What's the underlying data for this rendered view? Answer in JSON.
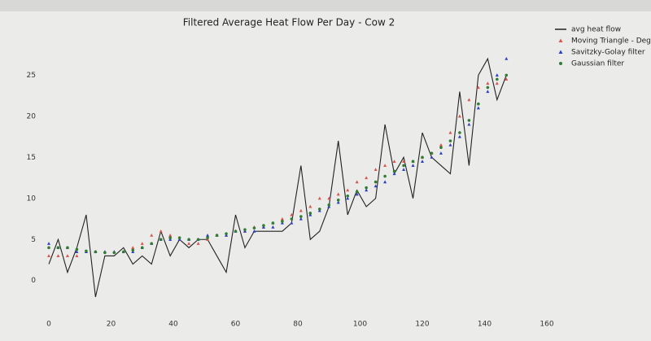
{
  "chart_data": {
    "type": "line",
    "title": "Filtered Average Heat Flow Per Day - Cow 2",
    "x": [
      0,
      3,
      6,
      9,
      12,
      15,
      18,
      21,
      24,
      27,
      30,
      33,
      36,
      39,
      42,
      45,
      48,
      51,
      54,
      57,
      60,
      63,
      66,
      69,
      72,
      75,
      78,
      81,
      84,
      87,
      90,
      93,
      96,
      99,
      102,
      105,
      108,
      111,
      114,
      117,
      120,
      123,
      126,
      129,
      132,
      135,
      138,
      141,
      144,
      147
    ],
    "series": [
      {
        "name": "avg heat flow",
        "color": "#222222",
        "style": "line",
        "values": [
          2,
          5,
          1,
          4,
          8,
          -2,
          3,
          3,
          4,
          2,
          3,
          2,
          6,
          3,
          5,
          4,
          5,
          5,
          3,
          1,
          8,
          4,
          6,
          6,
          6,
          6,
          7,
          14,
          5,
          6,
          9,
          17,
          8,
          11,
          9,
          10,
          19,
          13,
          15,
          10,
          18,
          15,
          14,
          13,
          23,
          14,
          25,
          27,
          22,
          25
        ]
      },
      {
        "name": "Moving Triangle - Degr",
        "color": "#d9534f",
        "style": "triangle",
        "values": [
          3,
          3,
          3,
          3,
          3.5,
          3.5,
          3.5,
          3.5,
          3.5,
          4,
          4.5,
          5.5,
          6,
          5.5,
          5,
          4.5,
          4.5,
          5,
          5.5,
          5.5,
          6,
          6,
          6.5,
          6.5,
          7,
          7.5,
          8,
          8.5,
          9,
          10,
          10,
          10.5,
          11,
          12,
          12.5,
          13.5,
          14,
          14.5,
          14.5,
          14.5,
          15,
          15.5,
          16.5,
          18,
          20,
          22,
          23.5,
          24,
          24,
          24.5
        ]
      },
      {
        "name": "Savitzky-Golay filter",
        "color": "#2b3fc4",
        "style": "triangle",
        "values": [
          4.5,
          4,
          4,
          3.5,
          3.5,
          3.5,
          3.5,
          3.5,
          3.5,
          3.5,
          4,
          4.5,
          5,
          5,
          5,
          5,
          5,
          5.5,
          5.5,
          5.5,
          6,
          6,
          6,
          6.5,
          6.5,
          7,
          7,
          7.5,
          8,
          8.5,
          9,
          9.5,
          10,
          10.5,
          11,
          11.5,
          12,
          13,
          13.5,
          14,
          14.5,
          15,
          15.5,
          16.5,
          17.5,
          19,
          21,
          23,
          25,
          27
        ]
      },
      {
        "name": "Gaussian filter",
        "color": "#2e7d32",
        "style": "dot",
        "values": [
          4,
          4,
          4,
          3.8,
          3.6,
          3.5,
          3.4,
          3.4,
          3.5,
          3.7,
          4,
          4.5,
          5,
          5.2,
          5.2,
          5,
          5,
          5.2,
          5.5,
          5.7,
          6,
          6.2,
          6.4,
          6.7,
          7,
          7.2,
          7.5,
          7.8,
          8.2,
          8.7,
          9.2,
          9.8,
          10.3,
          10.8,
          11.3,
          12,
          12.7,
          13.3,
          14,
          14.5,
          15,
          15.5,
          16.2,
          17,
          18,
          19.5,
          21.5,
          23.5,
          24.5,
          25
        ]
      }
    ],
    "xlim": [
      0,
      160
    ],
    "xticks": [
      0,
      20,
      40,
      60,
      80,
      100,
      120,
      140,
      160
    ],
    "ylim": [
      -3,
      29
    ],
    "yticks": [
      0,
      5,
      10,
      15,
      20,
      25
    ],
    "grid": false,
    "legend": "upper right"
  }
}
